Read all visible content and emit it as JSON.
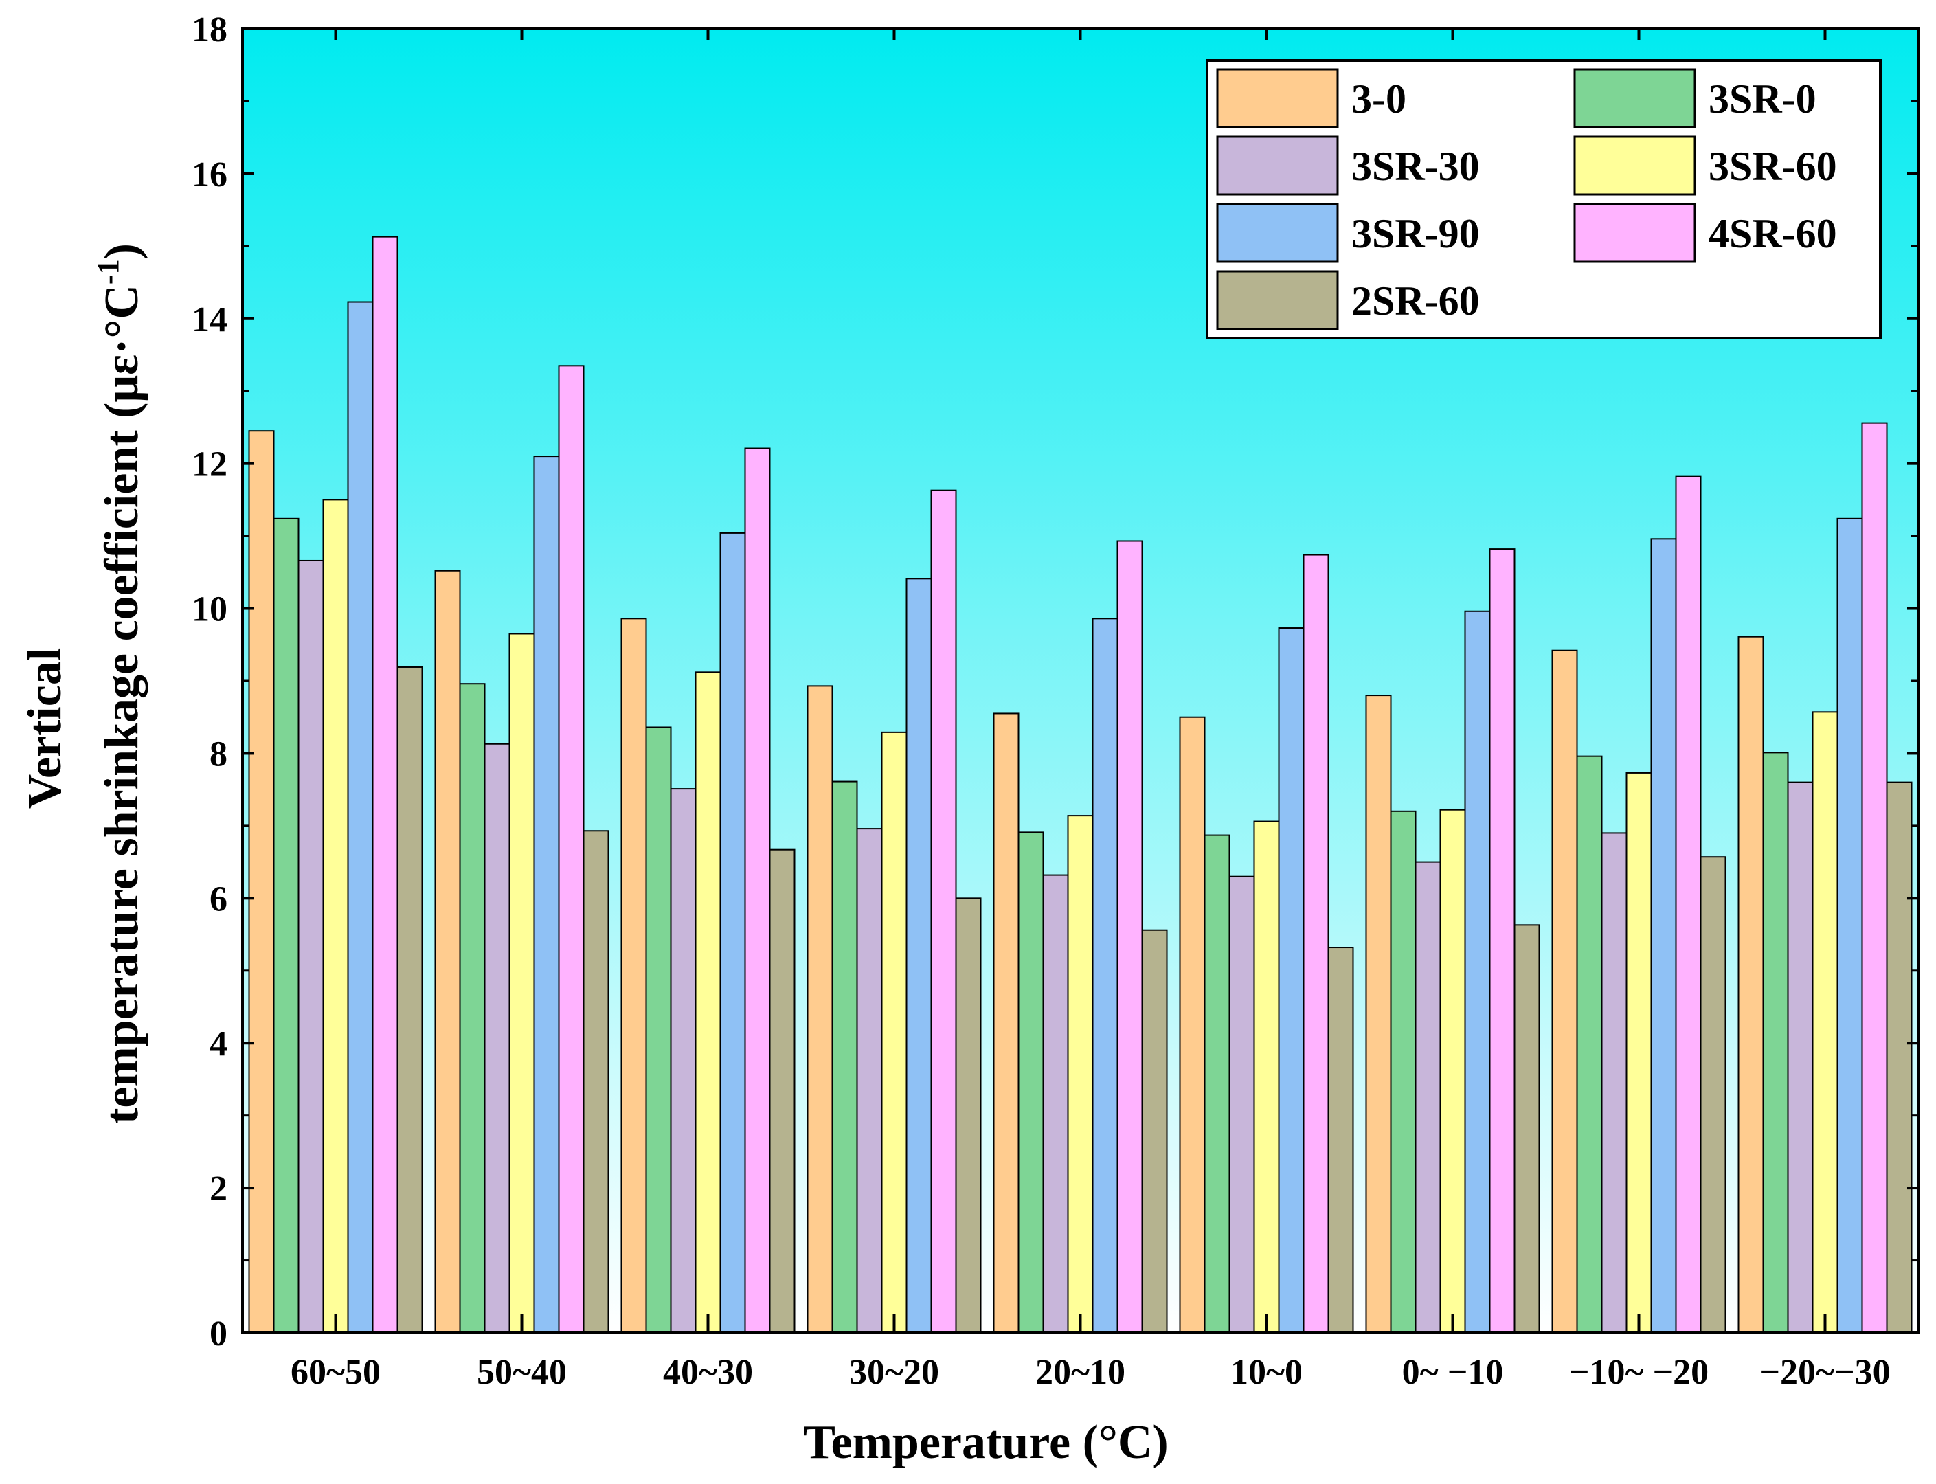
{
  "chart_data": {
    "type": "bar",
    "xlabel": "Temperature (°C)",
    "ylabel_line1": "Vertical",
    "ylabel_line2_prefix": "temperature shrinkage coefficient (με·°C",
    "ylabel_sup": "-1",
    "ylabel_suffix": ")",
    "ylim": [
      0,
      18
    ],
    "yticks": [
      0,
      2,
      4,
      6,
      8,
      10,
      12,
      14,
      16,
      18
    ],
    "categories": [
      "60~50",
      "50~40",
      "40~30",
      "30~20",
      "20~10",
      "10~0",
      "0~ −10",
      "−10~ −20",
      "−20~−30"
    ],
    "series": [
      {
        "name": "3-0",
        "color": "#FFCC8F",
        "values": [
          12.45,
          10.52,
          9.86,
          8.93,
          8.55,
          8.5,
          8.8,
          9.42,
          9.61
        ]
      },
      {
        "name": "3SR-0",
        "color": "#7ED595",
        "values": [
          11.24,
          8.96,
          8.36,
          7.61,
          6.91,
          6.87,
          7.2,
          7.96,
          8.01
        ]
      },
      {
        "name": "3SR-30",
        "color": "#C8B6DA",
        "values": [
          10.66,
          8.13,
          7.51,
          6.96,
          6.32,
          6.3,
          6.5,
          6.9,
          7.6
        ]
      },
      {
        "name": "3SR-60",
        "color": "#FFFF99",
        "values": [
          11.5,
          9.65,
          9.12,
          8.29,
          7.14,
          7.06,
          7.22,
          7.73,
          8.57
        ]
      },
      {
        "name": "3SR-90",
        "color": "#8FC1F5",
        "values": [
          14.23,
          12.1,
          11.04,
          10.41,
          9.86,
          9.73,
          9.96,
          10.96,
          11.24
        ]
      },
      {
        "name": "4SR-60",
        "color": "#FFB3FF",
        "values": [
          15.13,
          13.35,
          12.21,
          11.63,
          10.93,
          10.74,
          10.82,
          11.82,
          12.56
        ]
      },
      {
        "name": "2SR-60",
        "color": "#B5B38F",
        "values": [
          9.19,
          6.93,
          6.67,
          6.0,
          5.56,
          5.32,
          5.63,
          6.57,
          7.6
        ]
      }
    ],
    "legend_position": "top-right",
    "background_gradient": [
      "#00EBF0",
      "#FFFFFF"
    ],
    "grid": false
  }
}
